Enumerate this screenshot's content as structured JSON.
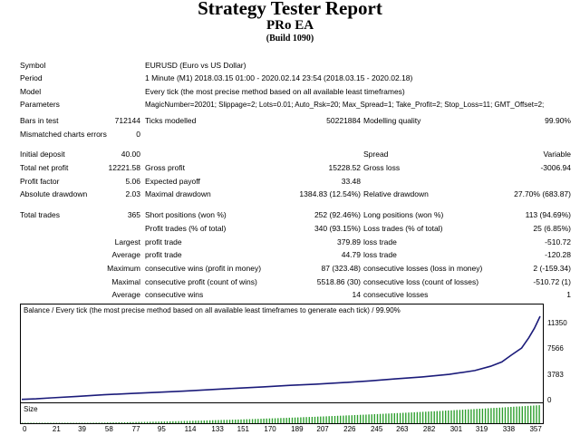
{
  "header": {
    "title": "Strategy Tester Report",
    "ea_name": "PRo EA",
    "build": "(Build 1090)"
  },
  "info": [
    {
      "label": "Symbol",
      "value": "EURUSD (Euro vs US Dollar)"
    },
    {
      "label": "Period",
      "value": "1 Minute (M1) 2018.03.15 01:00 - 2020.02.14 23:54 (2018.03.15 - 2020.02.18)"
    },
    {
      "label": "Model",
      "value": "Every tick (the most precise method based on all available least timeframes)"
    },
    {
      "label": "Parameters",
      "value": "MagicNumber=20201; Slippage=2; Lots=0.01; Auto_Rsk=20; Max_Spread=1; Take_Profit=2; Stop_Loss=11; GMT_Offset=2;"
    }
  ],
  "bars": {
    "bars_label": "Bars in test",
    "bars_value": "712144",
    "ticks_label": "Ticks modelled",
    "ticks_value": "50221884",
    "quality_label": "Modelling quality",
    "quality_value": "99.90%",
    "mismatch_label": "Mismatched charts errors",
    "mismatch_value": "0"
  },
  "money": {
    "initial_label": "Initial deposit",
    "initial_value": "40.00",
    "spread_label": "Spread",
    "spread_value": "Variable",
    "net_label": "Total net profit",
    "net_value": "12221.58",
    "gp_label": "Gross profit",
    "gp_value": "15228.52",
    "gl_label": "Gross loss",
    "gl_value": "-3006.94",
    "pf_label": "Profit factor",
    "pf_value": "5.06",
    "ep_label": "Expected payoff",
    "ep_value": "33.48",
    "ad_label": "Absolute drawdown",
    "ad_value": "2.03",
    "md_label": "Maximal drawdown",
    "md_value": "1384.83 (12.54%)",
    "rd_label": "Relative drawdown",
    "rd_value": "27.70% (683.87)"
  },
  "trades": {
    "total_label": "Total trades",
    "total_value": "365",
    "short_label": "Short positions (won %)",
    "short_value": "252 (92.46%)",
    "long_label": "Long positions (won %)",
    "long_value": "113 (94.69%)",
    "pt_label": "Profit trades (% of total)",
    "pt_value": "340 (93.15%)",
    "lt_label": "Loss trades (% of total)",
    "lt_value": "25 (6.85%)",
    "rows": [
      {
        "prefix": "Largest",
        "a_label": "profit trade",
        "a_value": "379.89",
        "b_label": "loss trade",
        "b_value": "-510.72"
      },
      {
        "prefix": "Average",
        "a_label": "profit trade",
        "a_value": "44.79",
        "b_label": "loss trade",
        "b_value": "-120.28"
      },
      {
        "prefix": "Maximum",
        "a_label": "consecutive wins (profit in money)",
        "a_value": "87 (323.48)",
        "b_label": "consecutive losses (loss in money)",
        "b_value": "2 (-159.34)"
      },
      {
        "prefix": "Maximal",
        "a_label": "consecutive profit (count of wins)",
        "a_value": "5518.86 (30)",
        "b_label": "consecutive loss (count of losses)",
        "b_value": "-510.72 (1)"
      },
      {
        "prefix": "Average",
        "a_label": "consecutive wins",
        "a_value": "14",
        "b_label": "consecutive losses",
        "b_value": "1"
      }
    ]
  },
  "chart_data": {
    "type": "line",
    "title": "Balance / Every tick (the most precise method based on all available least timeframes to generate each tick) / 99.90%",
    "size_label": "Size",
    "y_ticks": [
      "11350",
      "7566",
      "3783",
      "0"
    ],
    "x_ticks": [
      "0",
      "21",
      "39",
      "58",
      "77",
      "95",
      "114",
      "133",
      "151",
      "170",
      "189",
      "207",
      "226",
      "245",
      "263",
      "282",
      "301",
      "319",
      "338",
      "357"
    ],
    "ylim": [
      0,
      12261
    ],
    "xlim": [
      0,
      365
    ],
    "x": [
      0,
      10,
      21,
      39,
      58,
      77,
      95,
      114,
      133,
      151,
      170,
      189,
      207,
      226,
      245,
      263,
      282,
      301,
      319,
      330,
      338,
      345,
      352,
      357,
      361,
      365
    ],
    "y": [
      40,
      120,
      260,
      480,
      720,
      900,
      1080,
      1250,
      1480,
      1680,
      1880,
      2100,
      2280,
      2500,
      2760,
      3050,
      3350,
      3720,
      4280,
      4900,
      5550,
      6600,
      7600,
      9100,
      10500,
      12261
    ],
    "colors": {
      "line": "#1b1b7a",
      "bars": "#2e9f2e",
      "frame": "#000000"
    }
  }
}
